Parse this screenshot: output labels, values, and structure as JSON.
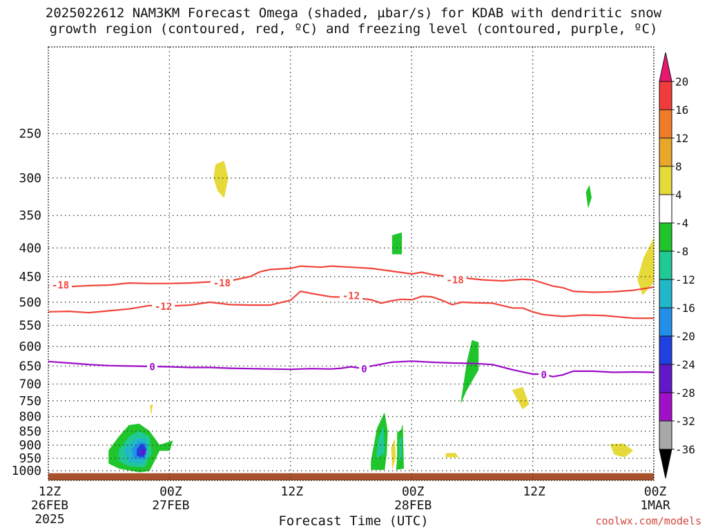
{
  "chart_data": {
    "type": "heatmap",
    "title_lines": [
      "2025022612 NAM3KM Forecast Omega (shaded, µbar/s) for KDAB with dendritic snow",
      "growth region (contoured, red, ºC) and freezing level (contoured, purple, ºC)"
    ],
    "xlabel": "Forecast Time (UTC)",
    "ylabel": "",
    "y_scale": "log",
    "ylim": [
      1040,
      175
    ],
    "xlim": [
      0,
      60
    ],
    "x_units": "hours after 2025-02-26 12Z",
    "x_ticks": [
      {
        "x": 0,
        "lines": [
          "12Z",
          "26FEB",
          "2025"
        ]
      },
      {
        "x": 12,
        "lines": [
          "00Z",
          "27FEB"
        ]
      },
      {
        "x": 24,
        "lines": [
          "12Z"
        ]
      },
      {
        "x": 36,
        "lines": [
          "00Z",
          "28FEB"
        ]
      },
      {
        "x": 48,
        "lines": [
          "12Z"
        ]
      },
      {
        "x": 60,
        "lines": [
          "00Z",
          "1MAR"
        ]
      }
    ],
    "y_ticks": [
      250,
      300,
      350,
      400,
      450,
      500,
      550,
      600,
      650,
      700,
      750,
      800,
      850,
      900,
      950,
      1000
    ],
    "grid": true,
    "colorbar": {
      "ticks": [
        "20",
        "16",
        "12",
        "8",
        "4",
        "-4",
        "-8",
        "-12",
        "-16",
        "-20",
        "-24",
        "-28",
        "-32",
        "-36"
      ],
      "colors": [
        "#e8176f",
        "#f03c3c",
        "#ef7b29",
        "#e8a62a",
        "#e6d93a",
        "#ffffff",
        "#1fc52b",
        "#20c895",
        "#21b6c8",
        "#2290e8",
        "#2040e0",
        "#6018c8",
        "#a010c8",
        "#a8a8a8",
        "#000000"
      ]
    },
    "contours": [
      {
        "label": "-18",
        "color": "#f0443a",
        "label_positions": [
          [
            1.2,
            466
          ],
          [
            17.2,
            462
          ],
          [
            40.3,
            456
          ]
        ],
        "points": [
          [
            0,
            468
          ],
          [
            2,
            469
          ],
          [
            4,
            467
          ],
          [
            6,
            466
          ],
          [
            8,
            462
          ],
          [
            10,
            463
          ],
          [
            12,
            463
          ],
          [
            14,
            462
          ],
          [
            16,
            460
          ],
          [
            18,
            458
          ],
          [
            20,
            450
          ],
          [
            21,
            441
          ],
          [
            22,
            437
          ],
          [
            24,
            435
          ],
          [
            25,
            431
          ],
          [
            27,
            433
          ],
          [
            28,
            431
          ],
          [
            30,
            433
          ],
          [
            32,
            435
          ],
          [
            34,
            440
          ],
          [
            36,
            445
          ],
          [
            37,
            442
          ],
          [
            38,
            446
          ],
          [
            40,
            451
          ],
          [
            42,
            454
          ],
          [
            43,
            456
          ],
          [
            45,
            458
          ],
          [
            47,
            455
          ],
          [
            48,
            456
          ],
          [
            50,
            468
          ],
          [
            51,
            471
          ],
          [
            52,
            478
          ],
          [
            54,
            480
          ],
          [
            56,
            479
          ],
          [
            58,
            476
          ],
          [
            60,
            470
          ]
        ]
      },
      {
        "label": "-12",
        "color": "#f0443a",
        "label_positions": [
          [
            11.4,
            509
          ],
          [
            30.0,
            487
          ]
        ],
        "points": [
          [
            0,
            520
          ],
          [
            2,
            519
          ],
          [
            4,
            522
          ],
          [
            6,
            518
          ],
          [
            8,
            514
          ],
          [
            10,
            507
          ],
          [
            12,
            508
          ],
          [
            14,
            506
          ],
          [
            16,
            500
          ],
          [
            18,
            505
          ],
          [
            20,
            506
          ],
          [
            22,
            506
          ],
          [
            24,
            496
          ],
          [
            25,
            478
          ],
          [
            26,
            482
          ],
          [
            28,
            489
          ],
          [
            30,
            490
          ],
          [
            32,
            495
          ],
          [
            33,
            502
          ],
          [
            34,
            497
          ],
          [
            35,
            494
          ],
          [
            36,
            495
          ],
          [
            37,
            488
          ],
          [
            38,
            489
          ],
          [
            39,
            496
          ],
          [
            40,
            505
          ],
          [
            41,
            500
          ],
          [
            42,
            501
          ],
          [
            44,
            502
          ],
          [
            46,
            512
          ],
          [
            47,
            512
          ],
          [
            48,
            520
          ],
          [
            49,
            526
          ],
          [
            51,
            530
          ],
          [
            53,
            527
          ],
          [
            55,
            528
          ],
          [
            56,
            530
          ],
          [
            58,
            534
          ],
          [
            60,
            534
          ]
        ]
      },
      {
        "label": "0",
        "color": "#9c0ac8",
        "label_positions": [
          [
            10.3,
            652
          ],
          [
            31.3,
            658
          ],
          [
            49.1,
            674
          ]
        ],
        "points": [
          [
            0,
            638
          ],
          [
            2,
            642
          ],
          [
            4,
            646
          ],
          [
            6,
            649
          ],
          [
            8,
            650
          ],
          [
            10,
            651
          ],
          [
            12,
            652
          ],
          [
            14,
            654
          ],
          [
            16,
            654
          ],
          [
            18,
            656
          ],
          [
            20,
            657
          ],
          [
            22,
            658
          ],
          [
            24,
            659
          ],
          [
            26,
            657
          ],
          [
            28,
            658
          ],
          [
            29,
            656
          ],
          [
            30,
            652
          ],
          [
            31,
            656
          ],
          [
            32,
            650
          ],
          [
            34,
            640
          ],
          [
            36,
            637
          ],
          [
            38,
            640
          ],
          [
            40,
            642
          ],
          [
            42,
            643
          ],
          [
            44,
            646
          ],
          [
            46,
            660
          ],
          [
            48,
            672
          ],
          [
            49,
            672
          ],
          [
            50,
            679
          ],
          [
            51,
            674
          ],
          [
            52,
            664
          ],
          [
            54,
            664
          ],
          [
            56,
            667
          ],
          [
            58,
            666
          ],
          [
            60,
            667
          ]
        ]
      }
    ],
    "omega_regions": [
      {
        "value": 4,
        "color": "#e6d93a",
        "points": [
          [
            16.6,
            284
          ],
          [
            17.4,
            280
          ],
          [
            17.8,
            300
          ],
          [
            17.4,
            325
          ],
          [
            16.8,
            316
          ],
          [
            16.4,
            300
          ]
        ]
      },
      {
        "value": -8,
        "color": "#1fc52b",
        "points": [
          [
            53.3,
            318
          ],
          [
            53.6,
            310
          ],
          [
            53.8,
            325
          ],
          [
            53.5,
            338
          ]
        ]
      },
      {
        "value": -8,
        "color": "#1fc52b",
        "points": [
          [
            34.1,
            380
          ],
          [
            35.0,
            376
          ],
          [
            35.0,
            410
          ],
          [
            34.1,
            410
          ]
        ]
      },
      {
        "value": 4,
        "color": "#e6d93a",
        "points": [
          [
            59.0,
            417
          ],
          [
            60.0,
            385
          ],
          [
            60.0,
            460
          ],
          [
            58.9,
            485
          ],
          [
            58.4,
            455
          ]
        ]
      },
      {
        "value": -8,
        "color": "#1fc52b",
        "points": [
          [
            41.5,
            640
          ],
          [
            42.0,
            585
          ],
          [
            42.6,
            590
          ],
          [
            42.6,
            660
          ],
          [
            41.4,
            720
          ],
          [
            40.9,
            755
          ]
        ]
      },
      {
        "value": 4,
        "color": "#e6d93a",
        "points": [
          [
            46.0,
            718
          ],
          [
            47.0,
            710
          ],
          [
            47.6,
            760
          ],
          [
            47.0,
            775
          ],
          [
            46.4,
            740
          ]
        ]
      },
      {
        "value": 4,
        "color": "#e6d93a",
        "points": [
          [
            10.1,
            765
          ],
          [
            10.3,
            762
          ],
          [
            10.2,
            790
          ]
        ]
      },
      {
        "value": 4,
        "color": "#e6d93a",
        "points": [
          [
            55.7,
            897
          ],
          [
            57.0,
            895
          ],
          [
            57.9,
            920
          ],
          [
            57.1,
            945
          ],
          [
            56.1,
            935
          ]
        ]
      },
      {
        "value": 4,
        "color": "#e6d93a",
        "points": [
          [
            39.4,
            932
          ],
          [
            40.3,
            930
          ],
          [
            40.6,
            945
          ],
          [
            39.4,
            945
          ]
        ]
      },
      {
        "value": -8,
        "color": "#1fc52b",
        "points": [
          [
            32.6,
            840
          ],
          [
            33.3,
            790
          ],
          [
            33.6,
            850
          ],
          [
            33.5,
            930
          ],
          [
            33.3,
            995
          ],
          [
            32.0,
            995
          ],
          [
            32.0,
            960
          ]
        ]
      },
      {
        "value": -12,
        "color": "#20c895",
        "points": [
          [
            32.7,
            880
          ],
          [
            33.2,
            835
          ],
          [
            33.3,
            930
          ],
          [
            32.5,
            950
          ]
        ]
      },
      {
        "value": 4,
        "color": "#e6d93a",
        "points": [
          [
            34.0,
            910
          ],
          [
            34.3,
            880
          ],
          [
            34.4,
            945
          ],
          [
            34.1,
            990
          ]
        ]
      },
      {
        "value": -8,
        "color": "#1fc52b",
        "points": [
          [
            34.6,
            855
          ],
          [
            35.0,
            845
          ],
          [
            35.1,
            830
          ],
          [
            35.2,
            990
          ],
          [
            34.5,
            995
          ],
          [
            34.6,
            950
          ]
        ]
      },
      {
        "value": -12,
        "color": "#20c895",
        "points": [
          [
            34.8,
            880
          ],
          [
            35.0,
            870
          ],
          [
            35.0,
            950
          ],
          [
            34.8,
            960
          ]
        ]
      },
      {
        "value": -8,
        "color": "#1fc52b",
        "points": [
          [
            6.0,
            920
          ],
          [
            7.0,
            870
          ],
          [
            8.0,
            830
          ],
          [
            9.0,
            825
          ],
          [
            10.0,
            850
          ],
          [
            11.0,
            900
          ],
          [
            12.3,
            885
          ],
          [
            12.0,
            920
          ],
          [
            11.0,
            920
          ],
          [
            10.5,
            960
          ],
          [
            10.0,
            1000
          ],
          [
            9.0,
            1005
          ],
          [
            7.0,
            990
          ],
          [
            6.0,
            970
          ]
        ]
      },
      {
        "value": -12,
        "color": "#20c895",
        "points": [
          [
            7.0,
            920
          ],
          [
            8.0,
            870
          ],
          [
            9.0,
            850
          ],
          [
            10.0,
            870
          ],
          [
            10.2,
            930
          ],
          [
            9.5,
            985
          ],
          [
            8.0,
            980
          ],
          [
            7.0,
            960
          ]
        ]
      },
      {
        "value": -16,
        "color": "#21b6c8",
        "points": [
          [
            7.5,
            920
          ],
          [
            8.5,
            880
          ],
          [
            9.6,
            875
          ],
          [
            9.9,
            930
          ],
          [
            9.3,
            970
          ],
          [
            8.0,
            965
          ]
        ]
      },
      {
        "value": -20,
        "color": "#2290e8",
        "points": [
          [
            8.3,
            915
          ],
          [
            9.0,
            890
          ],
          [
            9.7,
            895
          ],
          [
            9.6,
            950
          ],
          [
            8.5,
            950
          ]
        ]
      },
      {
        "value": -24,
        "color": "#2040e0",
        "points": [
          [
            8.8,
            915
          ],
          [
            9.3,
            895
          ],
          [
            9.7,
            915
          ],
          [
            9.4,
            945
          ],
          [
            8.8,
            940
          ]
        ]
      },
      {
        "value": -28,
        "color": "#6018c8",
        "points": [
          [
            9.2,
            920
          ],
          [
            9.6,
            915
          ],
          [
            9.6,
            935
          ],
          [
            9.2,
            935
          ]
        ]
      }
    ],
    "terrain": {
      "color": "#a9512c",
      "top_hpa": 1010
    }
  },
  "watermark": "coolwx.com/models"
}
